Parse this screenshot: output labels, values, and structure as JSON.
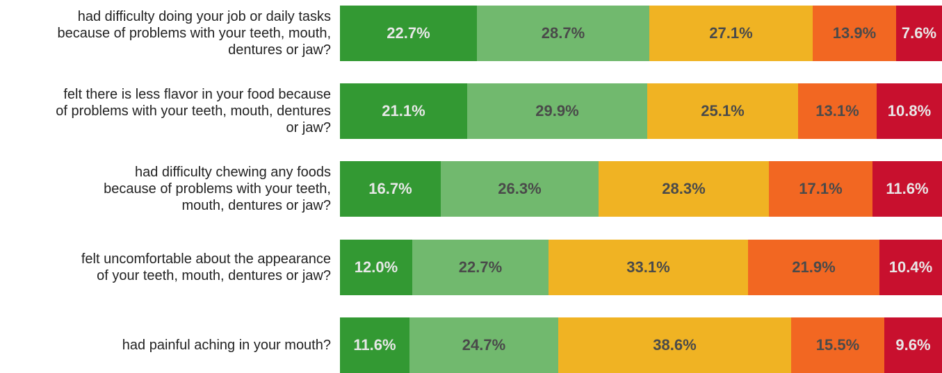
{
  "chart_data": {
    "type": "bar",
    "orientation": "horizontal",
    "stacked": true,
    "percent_stacked": true,
    "categories": [
      [
        "had difficulty doing your job or daily tasks",
        "because of problems with your teeth, mouth,",
        "dentures or jaw?"
      ],
      [
        "felt there is less flavor in your food because",
        "of problems with your teeth, mouth, dentures",
        "or jaw?"
      ],
      [
        "had difficulty chewing any foods",
        "because of problems with your teeth,",
        "mouth, dentures or jaw?"
      ],
      [
        "felt uncomfortable about the appearance",
        "of your teeth, mouth, dentures or jaw?"
      ],
      [
        "had painful aching in your mouth?"
      ]
    ],
    "series": [
      {
        "values": [
          22.7,
          21.1,
          16.7,
          12.0,
          11.6
        ],
        "labels": [
          "22.7%",
          "21.1%",
          "16.7%",
          "12.0%",
          "11.6%"
        ],
        "color": "#339933",
        "label_color": "#e8e8e8"
      },
      {
        "values": [
          28.7,
          29.9,
          26.3,
          22.7,
          24.7
        ],
        "labels": [
          "28.7%",
          "29.9%",
          "26.3%",
          "22.7%",
          "24.7%"
        ],
        "color": "#71b96e",
        "label_color": "#4a4a4a"
      },
      {
        "values": [
          27.1,
          25.1,
          28.3,
          33.1,
          38.6
        ],
        "labels": [
          "27.1%",
          "25.1%",
          "28.3%",
          "33.1%",
          "38.6%"
        ],
        "color": "#f0b323",
        "label_color": "#4a4a4a"
      },
      {
        "values": [
          13.9,
          13.1,
          17.1,
          21.9,
          15.5
        ],
        "labels": [
          "13.9%",
          "13.1%",
          "17.1%",
          "21.9%",
          "15.5%"
        ],
        "color": "#f26722",
        "label_color": "#4a4a4a"
      },
      {
        "values": [
          7.6,
          10.8,
          11.6,
          10.4,
          9.6
        ],
        "labels": [
          "7.6%",
          "10.8%",
          "11.6%",
          "10.4%",
          "9.6%"
        ],
        "color": "#c8102e",
        "label_color": "#e8e8e8"
      }
    ]
  }
}
